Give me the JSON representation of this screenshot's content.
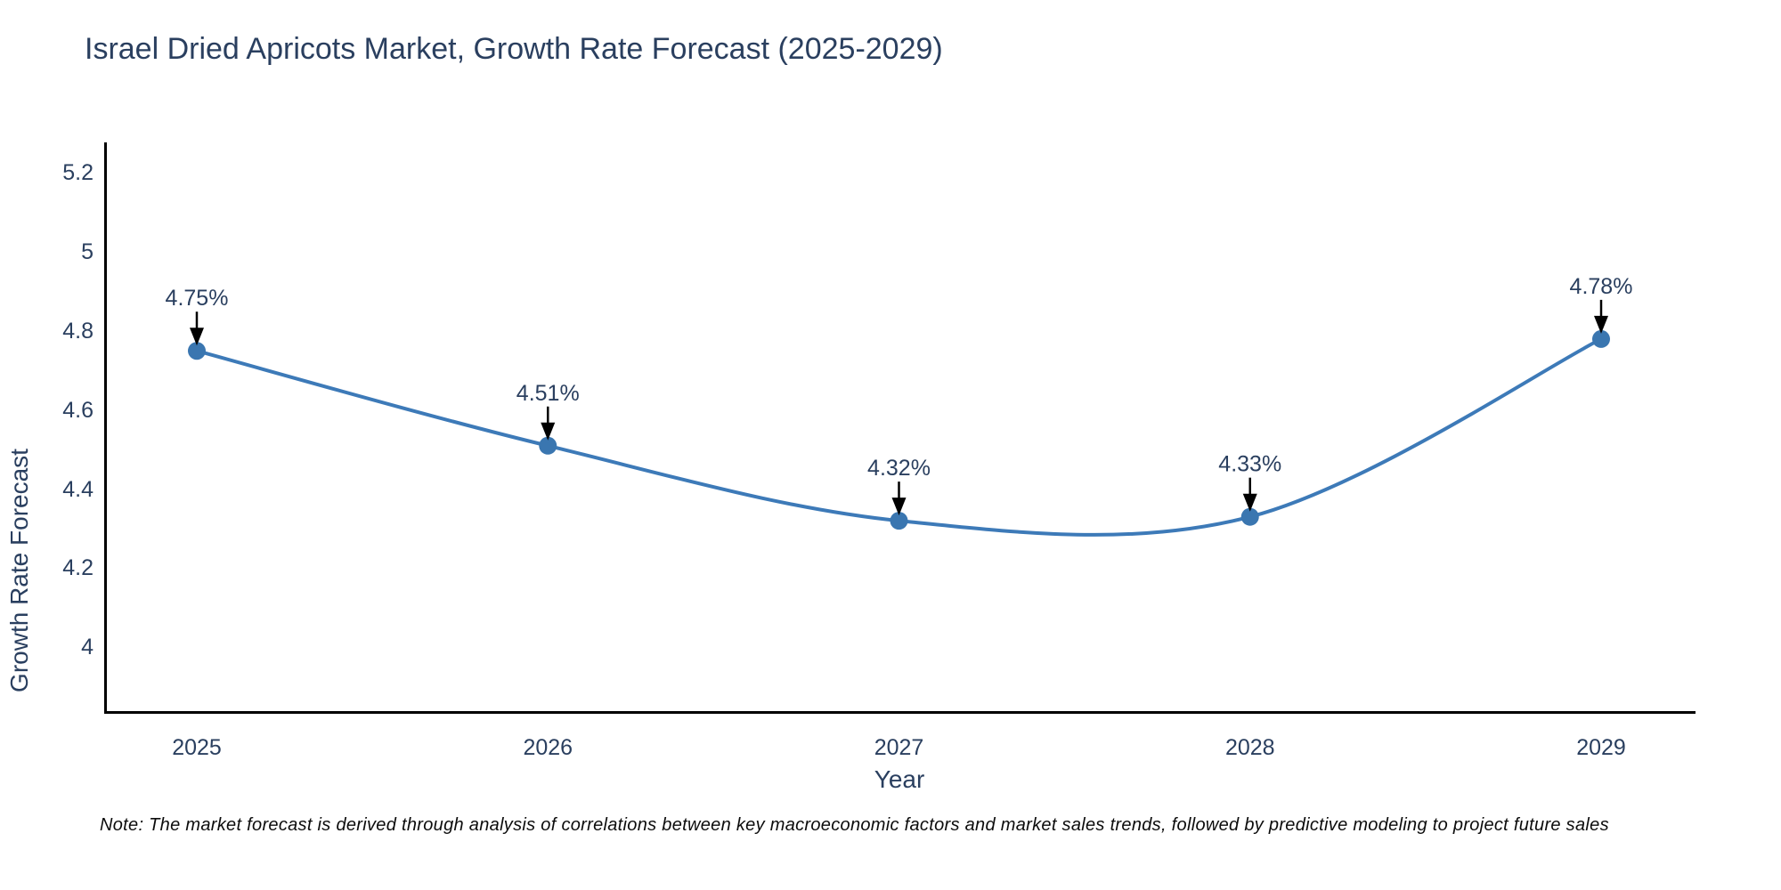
{
  "title": "Israel Dried Apricots Market, Growth Rate Forecast (2025-2029)",
  "note": "Note: The market forecast is derived through analysis of correlations between key macroeconomic factors and market sales trends, followed by predictive modeling to project future sales",
  "chart_data": {
    "type": "line",
    "title": "Israel Dried Apricots Market, Growth Rate Forecast (2025-2029)",
    "xlabel": "Year",
    "ylabel": "Growth Rate Forecast",
    "categories": [
      "2025",
      "2026",
      "2027",
      "2028",
      "2029"
    ],
    "values": [
      4.75,
      4.51,
      4.32,
      4.33,
      4.78
    ],
    "point_labels": [
      "4.75%",
      "4.51%",
      "4.32%",
      "4.33%",
      "4.78%"
    ],
    "yticks": [
      4,
      4.2,
      4.4,
      4.6,
      4.8,
      5,
      5.2
    ],
    "ylim": [
      3.83,
      5.28
    ],
    "line_shape": "spline",
    "grid": false,
    "legend": "none",
    "colors": {
      "line": "#3d7ab8",
      "marker": "#3a76b0",
      "axis": "#000000",
      "tick_text": "#2a3f5f",
      "annotation_text": "#2a3f5f",
      "annotation_arrow": "#000000",
      "note_text": "#0c0c0c",
      "background": "#ffffff"
    }
  }
}
